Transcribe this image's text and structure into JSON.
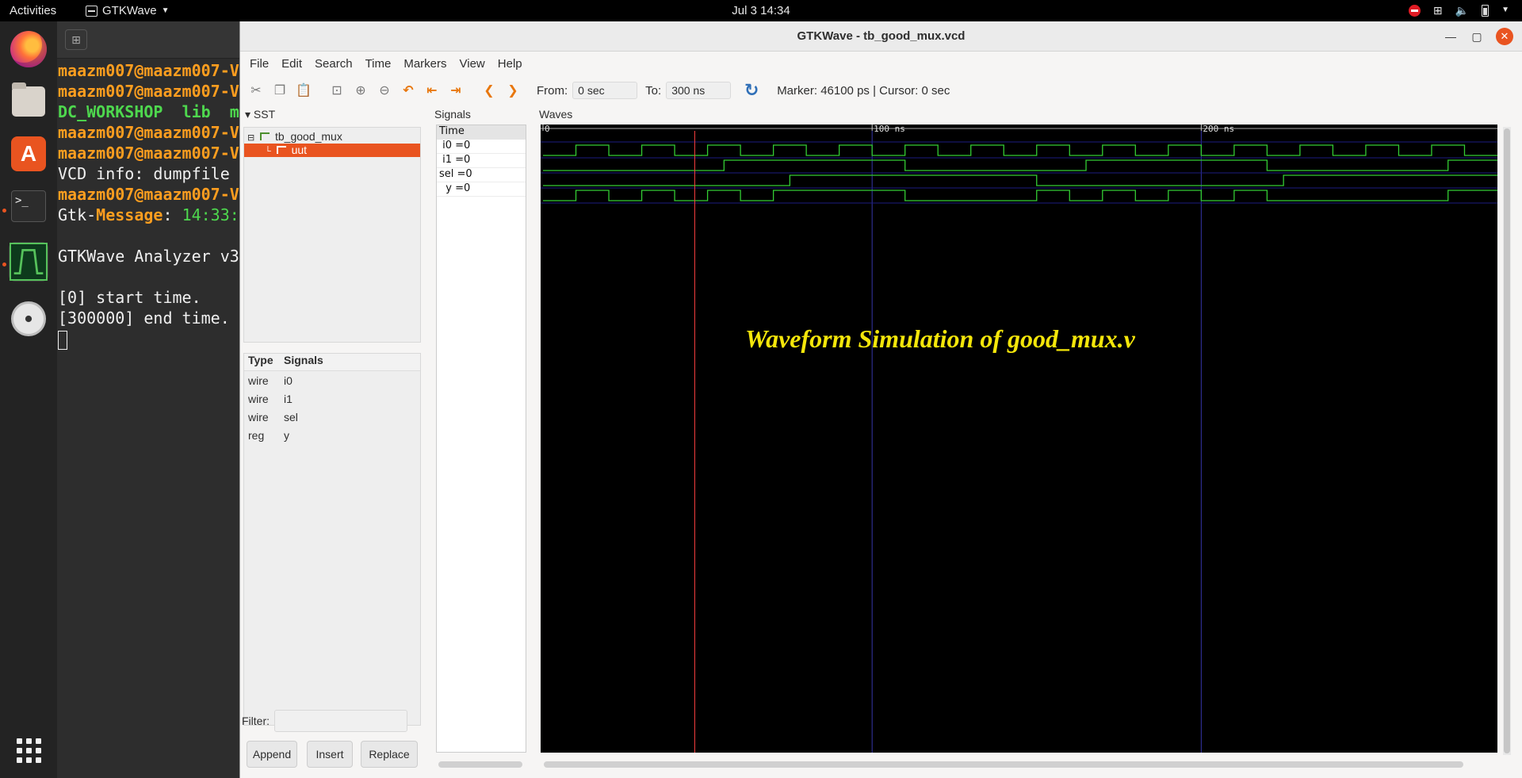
{
  "topbar": {
    "activities": "Activities",
    "app_menu": "GTKWave",
    "clock": "Jul 3  14:34"
  },
  "terminal": {
    "lines": [
      {
        "segments": [
          {
            "t": "maazm007@maazm007-V",
            "c": "c-orange"
          }
        ]
      },
      {
        "segments": [
          {
            "t": "maazm007@maazm007-V",
            "c": "c-orange"
          }
        ]
      },
      {
        "segments": [
          {
            "t": "DC_WORKSHOP  lib  m",
            "c": "c-green-b"
          }
        ]
      },
      {
        "segments": [
          {
            "t": "maazm007@maazm007-V",
            "c": "c-orange"
          }
        ]
      },
      {
        "segments": [
          {
            "t": "maazm007@maazm007-V",
            "c": "c-orange"
          }
        ]
      },
      {
        "segments": [
          {
            "t": "VCD info: dumpfile ",
            "c": ""
          }
        ]
      },
      {
        "segments": [
          {
            "t": "maazm007@maazm007-V",
            "c": "c-orange"
          }
        ]
      },
      {
        "segments": [
          {
            "t": "Gtk-",
            "c": ""
          },
          {
            "t": "Message",
            "c": "c-orange"
          },
          {
            "t": ": ",
            "c": ""
          },
          {
            "t": "14:33:",
            "c": "c-green"
          }
        ]
      },
      {
        "segments": [
          {
            "t": "",
            "c": ""
          }
        ]
      },
      {
        "segments": [
          {
            "t": "GTKWave Analyzer v3",
            "c": ""
          }
        ]
      },
      {
        "segments": [
          {
            "t": "",
            "c": ""
          }
        ]
      },
      {
        "segments": [
          {
            "t": "[0] start time.",
            "c": ""
          }
        ]
      },
      {
        "segments": [
          {
            "t": "[300000] end time.",
            "c": ""
          }
        ]
      }
    ]
  },
  "window": {
    "title": "GTKWave - tb_good_mux.vcd"
  },
  "menu": [
    "File",
    "Edit",
    "Search",
    "Time",
    "Markers",
    "View",
    "Help"
  ],
  "toolbar": {
    "from_label": "From:",
    "from_value": "0 sec",
    "to_label": "To:",
    "to_value": "300 ns",
    "marker_text": "Marker: 46100 ps  |  Cursor: 0 sec"
  },
  "sst": {
    "label": "SST",
    "tree": [
      "tb_good_mux",
      "uut"
    ]
  },
  "signals_table": {
    "col_type": "Type",
    "col_signals": "Signals",
    "rows": [
      {
        "type": "wire",
        "name": "i0"
      },
      {
        "type": "wire",
        "name": "i1"
      },
      {
        "type": "wire",
        "name": "sel"
      },
      {
        "type": "reg",
        "name": "y"
      }
    ]
  },
  "filter": {
    "label": "Filter:",
    "value": ""
  },
  "buttons": {
    "append": "Append",
    "insert": "Insert",
    "replace": "Replace"
  },
  "signals_pane": {
    "label": "Signals",
    "time_label": "Time",
    "rows": [
      " i0 =0",
      " i1 =0",
      "sel =0",
      "  y =0"
    ]
  },
  "waves_pane": {
    "label": "Waves",
    "overlay_title": "Waveform Simulation of good_mux.v",
    "colors": {
      "wave": "#33cc33",
      "grid": "#3535a8",
      "marker": "#ff4040",
      "overlay": "#f4e60a"
    }
  },
  "chart_data": {
    "type": "line",
    "title": "",
    "xunit": "ns",
    "xlim": [
      0,
      290
    ],
    "ticks": [
      {
        "v": 0,
        "label": "0"
      },
      {
        "v": 100,
        "label": "100 ns"
      },
      {
        "v": 200,
        "label": "200 ns"
      }
    ],
    "marker_ns": 46.1,
    "series": [
      {
        "name": "i0",
        "transitions": [
          0,
          10,
          20,
          30,
          40,
          50,
          60,
          70,
          80,
          90,
          100,
          110,
          120,
          130,
          140,
          150,
          160,
          170,
          180,
          190,
          200,
          210,
          220,
          230,
          240,
          250,
          260,
          270,
          280,
          290
        ],
        "initial": 0
      },
      {
        "name": "i1",
        "transitions": [
          0,
          55,
          110,
          165,
          220,
          275,
          290
        ],
        "initial": 0
      },
      {
        "name": "sel",
        "transitions": [
          0,
          75,
          150,
          225,
          290
        ],
        "initial": 0
      },
      {
        "name": "y",
        "transitions": [
          0,
          10,
          20,
          30,
          40,
          50,
          60,
          70,
          110,
          150,
          160,
          170,
          180,
          190,
          200,
          210,
          220,
          275,
          290
        ],
        "initial": 0
      }
    ]
  }
}
